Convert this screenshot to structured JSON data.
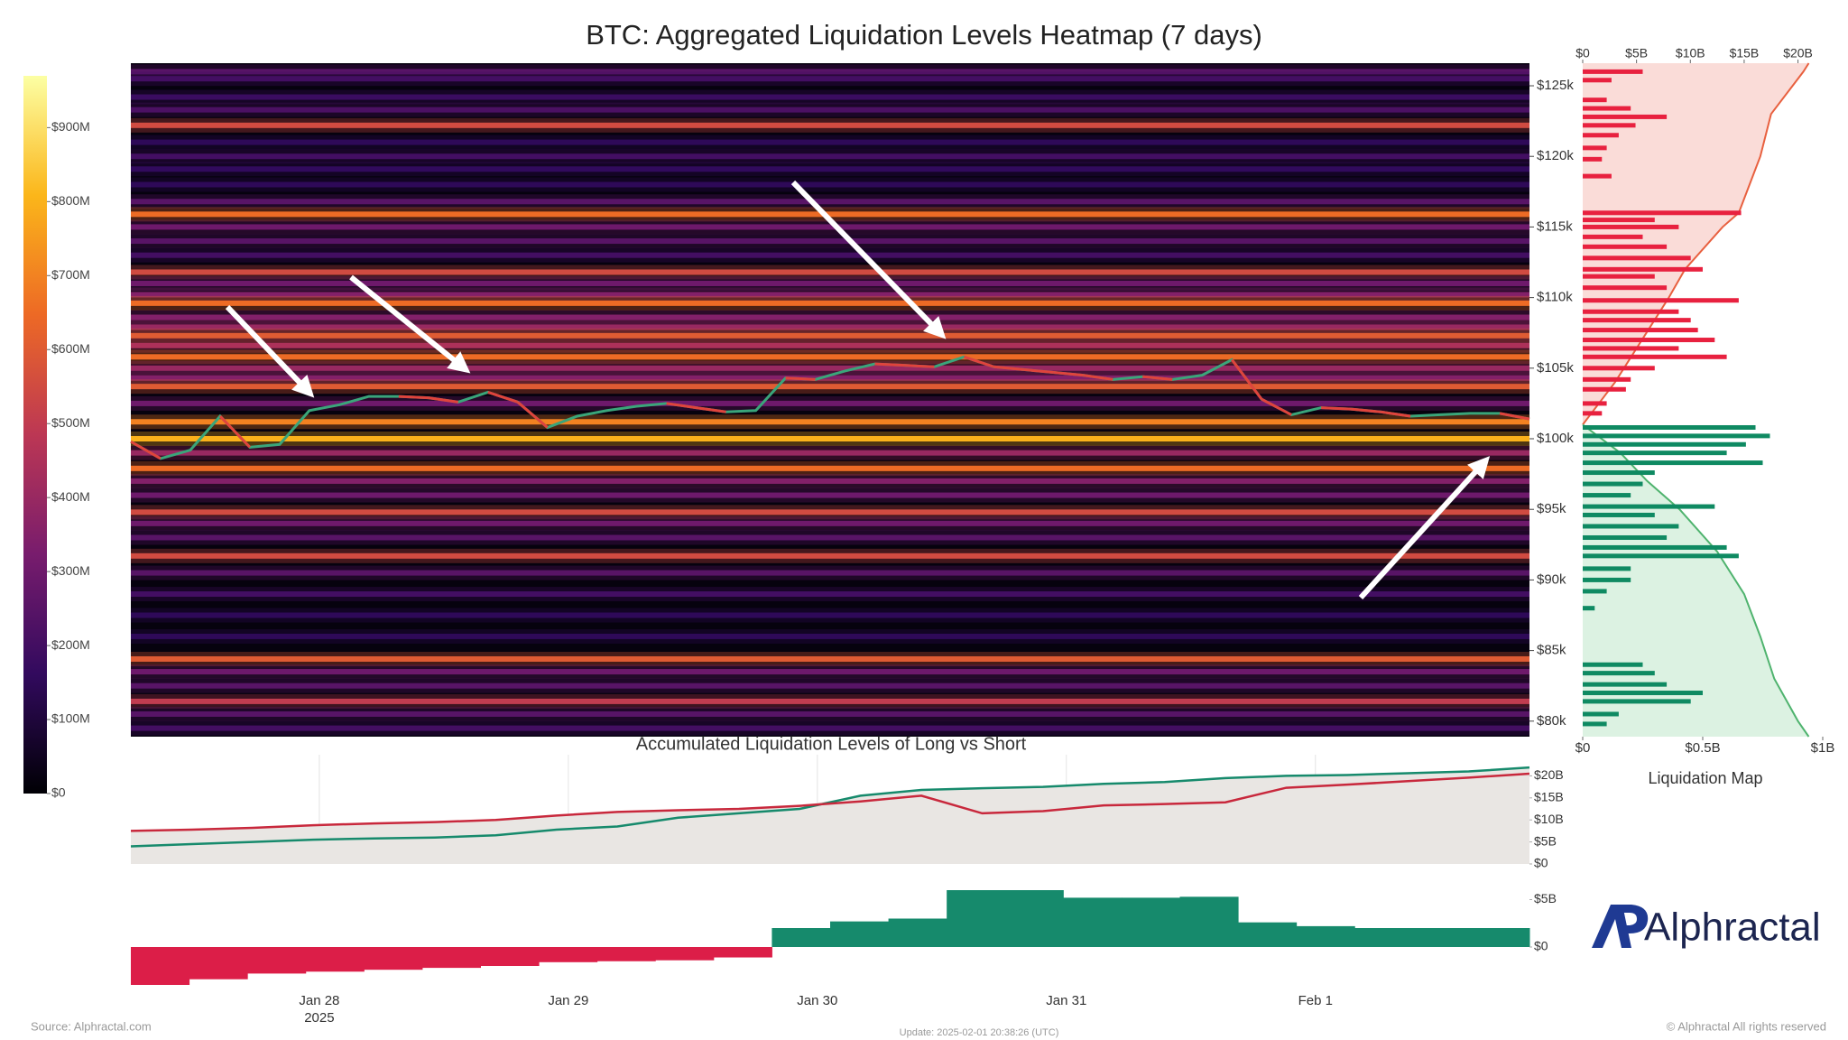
{
  "chart_data": [
    {
      "type": "heatmap",
      "title": "BTC: Aggregated Liquidation Levels Heatmap (7 days)",
      "xlim": [
        "2025-01-27T05:50",
        "2025-02-01T20:38"
      ],
      "xticks": [
        {
          "value": "2025-01-28T00:00",
          "label": "Jan 28"
        },
        {
          "value": "2025-01-29T00:00",
          "label": "Jan 29"
        },
        {
          "value": "2025-01-30T00:00",
          "label": "Jan 30"
        },
        {
          "value": "2025-01-31T00:00",
          "label": "Jan 31"
        },
        {
          "value": "2025-02-01T00:00",
          "label": "Feb 1"
        }
      ],
      "year_label": "2025",
      "ylim": [
        78900,
        126600
      ],
      "yticks": [
        {
          "value": 80000,
          "label": "$80k"
        },
        {
          "value": 85000,
          "label": "$85k"
        },
        {
          "value": 90000,
          "label": "$90k"
        },
        {
          "value": 95000,
          "label": "$95k"
        },
        {
          "value": 100000,
          "label": "$100k"
        },
        {
          "value": 105000,
          "label": "$105k"
        },
        {
          "value": 110000,
          "label": "$110k"
        },
        {
          "value": 115000,
          "label": "$115k"
        },
        {
          "value": 120000,
          "label": "$120k"
        },
        {
          "value": 125000,
          "label": "$125k"
        }
      ],
      "bands": {
        "prices": [
          126000,
          125500,
          124200,
          123300,
          122200,
          121000,
          120000,
          119100,
          118000,
          116800,
          115900,
          115000,
          114000,
          113000,
          111800,
          111000,
          110200,
          109600,
          108600,
          107900,
          107300,
          106600,
          105800,
          105000,
          104300,
          103700,
          102500,
          101200,
          100000,
          99000,
          97900,
          97000,
          96000,
          94800,
          94000,
          93000,
          91700,
          90500,
          89000,
          87500,
          86000,
          84400,
          83500,
          82500,
          81400,
          80500,
          79500
        ],
        "values": [
          250,
          200,
          180,
          220,
          550,
          150,
          200,
          160,
          150,
          250,
          650,
          300,
          250,
          200,
          550,
          300,
          350,
          650,
          350,
          400,
          600,
          450,
          650,
          400,
          350,
          600,
          300,
          700,
          800,
          400,
          650,
          350,
          300,
          550,
          300,
          250,
          550,
          250,
          200,
          150,
          150,
          600,
          300,
          250,
          500,
          250,
          200
        ]
      },
      "colorbar": {
        "ylim": [
          0,
          970
        ],
        "yticks": [
          {
            "value": 0,
            "label": "$0"
          },
          {
            "value": 100,
            "label": "$100M"
          },
          {
            "value": 200,
            "label": "$200M"
          },
          {
            "value": 300,
            "label": "$300M"
          },
          {
            "value": 400,
            "label": "$400M"
          },
          {
            "value": 500,
            "label": "$500M"
          },
          {
            "value": 600,
            "label": "$600M"
          },
          {
            "value": 700,
            "label": "$700M"
          },
          {
            "value": 800,
            "label": "$800M"
          },
          {
            "value": 900,
            "label": "$900M"
          }
        ],
        "colormap": [
          "#000004",
          "#320a5e",
          "#781c6d",
          "#bc3754",
          "#ed6925",
          "#fbb61a",
          "#fcffa4"
        ]
      },
      "series": [
        {
          "color": "#3aa57a",
          "values": [
            99800,
            98600,
            99200,
            101600,
            99400,
            99600,
            102000,
            102400,
            103000,
            103000,
            102900,
            102600,
            103300,
            102600,
            100800,
            101600,
            102000,
            102300,
            102500,
            102200,
            101900,
            102000,
            104300,
            104200,
            104800,
            105300,
            105200,
            105100,
            105800,
            105100,
            104900,
            104700,
            104500,
            104200,
            104400,
            104200,
            104500,
            105600,
            102800,
            101700,
            102200,
            102100,
            101900,
            101600,
            101700,
            101800,
            101800,
            101400
          ]
        }
      ]
    },
    {
      "type": "hbar",
      "title": "Liquidation Map",
      "ylim": [
        78900,
        126600
      ],
      "xlim": [
        0,
        1
      ],
      "xticks": [
        {
          "value": 0,
          "label": "$0"
        },
        {
          "value": 0.5,
          "label": "$0.5B"
        },
        {
          "value": 1,
          "label": "$1B"
        }
      ],
      "x2lim": [
        0,
        22.3
      ],
      "x2ticks": [
        {
          "value": 0,
          "label": "$0"
        },
        {
          "value": 5,
          "label": "$5B"
        },
        {
          "value": 10,
          "label": "$10B"
        },
        {
          "value": 15,
          "label": "$15B"
        },
        {
          "value": 20,
          "label": "$20B"
        }
      ],
      "series": [
        {
          "color": "#e8213f",
          "levels": [
            126000,
            125400,
            124000,
            123400,
            122800,
            122200,
            121500,
            120600,
            119800,
            118600,
            116000,
            115500,
            115000,
            114300,
            113600,
            112800,
            112000,
            111500,
            110700,
            109800,
            109000,
            108400,
            107700,
            107000,
            106400,
            105800,
            105000,
            104200,
            103500,
            102500,
            101800
          ],
          "values": [
            0.25,
            0.12,
            0.1,
            0.2,
            0.35,
            0.22,
            0.15,
            0.1,
            0.08,
            0.12,
            0.66,
            0.3,
            0.4,
            0.25,
            0.35,
            0.45,
            0.5,
            0.3,
            0.35,
            0.65,
            0.4,
            0.45,
            0.48,
            0.55,
            0.4,
            0.6,
            0.3,
            0.2,
            0.18,
            0.1,
            0.08
          ]
        },
        {
          "color": "#0f8a62",
          "levels": [
            100800,
            100200,
            99600,
            99000,
            98300,
            97600,
            96800,
            96000,
            95200,
            94600,
            93800,
            93000,
            92300,
            91700,
            90800,
            90000,
            89200,
            88000,
            84000,
            83400,
            82600,
            82000,
            81400,
            80500,
            79800
          ],
          "values": [
            0.72,
            0.78,
            0.68,
            0.6,
            0.75,
            0.3,
            0.25,
            0.2,
            0.55,
            0.3,
            0.4,
            0.35,
            0.6,
            0.65,
            0.2,
            0.2,
            0.1,
            0.05,
            0.25,
            0.3,
            0.35,
            0.5,
            0.45,
            0.15,
            0.1
          ]
        }
      ],
      "cumulative": [
        {
          "color": "#e8603f",
          "fill": "#fadcd8",
          "levels": [
            101000,
            104000,
            107000,
            110000,
            112000,
            115000,
            116000,
            120000,
            123000,
            126000,
            126600
          ],
          "values": [
            0,
            3,
            5.5,
            8,
            9.5,
            13,
            14.5,
            16.5,
            17.5,
            20.5,
            21
          ]
        },
        {
          "color": "#4fb36e",
          "fill": "#dcf2e2",
          "levels": [
            101000,
            99000,
            97000,
            95000,
            92000,
            89000,
            86000,
            83000,
            80000,
            78900
          ],
          "values": [
            0,
            3.5,
            6,
            9,
            12.5,
            15,
            16.5,
            17.8,
            20,
            21
          ]
        }
      ]
    },
    {
      "type": "line",
      "title": "Accumulated Liquidation Levels of Long vs Short",
      "ylim": [
        0,
        24.8
      ],
      "yticks": [
        {
          "value": 0,
          "label": "$0"
        },
        {
          "value": 5,
          "label": "$5B"
        },
        {
          "value": 10,
          "label": "$10B"
        },
        {
          "value": 15,
          "label": "$15B"
        },
        {
          "value": 20,
          "label": "$20B"
        }
      ],
      "series": [
        {
          "color": "#168a6c",
          "values": [
            4.0,
            4.5,
            5.0,
            5.5,
            5.8,
            6.0,
            6.5,
            7.8,
            8.5,
            10.5,
            11.5,
            12.5,
            15.5,
            16.8,
            17.2,
            17.5,
            18.2,
            18.6,
            19.5,
            20.0,
            20.2,
            20.6,
            21.0,
            21.9
          ]
        },
        {
          "color": "#c8283c",
          "values": [
            7.5,
            7.8,
            8.2,
            8.8,
            9.2,
            9.5,
            10.0,
            11.0,
            11.8,
            12.2,
            12.5,
            13.2,
            14.2,
            15.5,
            11.5,
            12.0,
            13.3,
            13.6,
            14.0,
            17.3,
            18.0,
            18.8,
            19.6,
            20.5
          ]
        }
      ]
    },
    {
      "type": "step",
      "ylim": [
        -4,
        6
      ],
      "yticks": [
        {
          "value": 0,
          "label": "$0"
        },
        {
          "value": 5,
          "label": "$5B"
        }
      ],
      "values": [
        -4.0,
        -3.4,
        -2.8,
        -2.6,
        -2.4,
        -2.2,
        -2.0,
        -1.6,
        -1.5,
        -1.4,
        -1.1,
        2.0,
        2.7,
        3.0,
        6.0,
        6.0,
        5.2,
        5.2,
        5.3,
        2.6,
        2.2,
        2.0,
        2.0,
        2.0
      ],
      "colors": {
        "positive": "#168a6c",
        "negative": "#dc1e48"
      }
    }
  ],
  "footer": {
    "source": "Source: Alphractal.com",
    "update": "Update: 2025-02-01 20:38:26 (UTC)",
    "copyright": "© Alphractal All rights reserved"
  },
  "logo": "Alphractal"
}
